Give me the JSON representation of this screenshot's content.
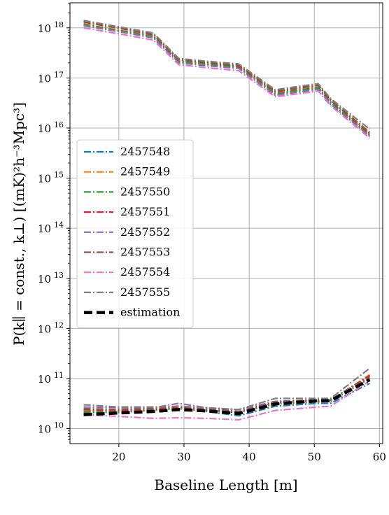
{
  "chart_data": {
    "type": "line",
    "xlabel": "Baseline Length [m]",
    "ylabel": "P(k∥ = const., k⊥) [(mK)²h⁻³Mpc³]",
    "xlim": [
      12.5,
      60.5
    ],
    "ylim_log10": [
      9.7,
      18.5
    ],
    "yscale": "log",
    "x_ticks": [
      20,
      30,
      40,
      50,
      60
    ],
    "y_tick_labels": [
      "10",
      "10",
      "10",
      "10",
      "10",
      "10",
      "10",
      "10",
      "10"
    ],
    "y_tick_exponents": [
      "10",
      "11",
      "12",
      "13",
      "14",
      "15",
      "16",
      "17",
      "18"
    ],
    "grid": true,
    "legend_position": "center-left",
    "x": [
      14.6,
      20,
      25.3,
      29.2,
      33.5,
      38.4,
      44,
      50.6,
      52.5,
      58.5
    ],
    "series": [
      {
        "name": "2457548",
        "color": "#1f77b4",
        "upper": [
          1.15e+18,
          8.8e+17,
          6.6e+17,
          2.1e+17,
          1.85e+17,
          1.62e+17,
          4.8e+16,
          6.3e+16,
          3.2e+16,
          7000000000000000.0
        ],
        "lower": [
          21000000000.0,
          21000000000.0,
          23000000000.0,
          25000000000.0,
          22000000000.0,
          18000000000.0,
          28000000000.0,
          32000000000.0,
          32000000000.0,
          80000000000.0
        ]
      },
      {
        "name": "2457549",
        "color": "#ff7f0e",
        "upper": [
          1.2e+18,
          9e+17,
          6.9e+17,
          2.2e+17,
          1.9e+17,
          1.68e+17,
          5e+16,
          6.6e+16,
          3.4e+16,
          7500000000000000.0
        ],
        "lower": [
          23000000000.0,
          23000000000.0,
          24000000000.0,
          26000000000.0,
          23000000000.0,
          21000000000.0,
          32000000000.0,
          35000000000.0,
          36000000000.0,
          120000000000.0
        ]
      },
      {
        "name": "2457550",
        "color": "#2ca02c",
        "upper": [
          1.18e+18,
          8.9e+17,
          6.8e+17,
          2.15e+17,
          1.88e+17,
          1.65e+17,
          4.9e+16,
          6.5e+16,
          3.3e+16,
          7200000000000000.0
        ],
        "lower": [
          22000000000.0,
          22000000000.0,
          23000000000.0,
          26000000000.0,
          23000000000.0,
          21000000000.0,
          31000000000.0,
          34000000000.0,
          35000000000.0,
          100000000000.0
        ]
      },
      {
        "name": "2457551",
        "color": "#d62728",
        "upper": [
          1.3e+18,
          9.8e+17,
          7.3e+17,
          2.3e+17,
          2e+17,
          1.75e+17,
          5.3e+16,
          7.1e+16,
          3.6e+16,
          7700000000000000.0
        ],
        "lower": [
          24000000000.0,
          23000000000.0,
          24000000000.0,
          27000000000.0,
          24000000000.0,
          21000000000.0,
          33000000000.0,
          36000000000.0,
          37000000000.0,
          115000000000.0
        ]
      },
      {
        "name": "2457552",
        "color": "#9467bd",
        "upper": [
          1.1e+18,
          8.4e+17,
          6.3e+17,
          2e+17,
          1.75e+17,
          1.55e+17,
          4.5e+16,
          5.9e+16,
          3e+16,
          6800000000000000.0
        ],
        "lower": [
          27000000000.0,
          26000000000.0,
          26000000000.0,
          32000000000.0,
          26000000000.0,
          24000000000.0,
          35000000000.0,
          38000000000.0,
          38000000000.0,
          105000000000.0
        ]
      },
      {
        "name": "2457553",
        "color": "#8c564b",
        "upper": [
          1.35e+18,
          1e+18,
          7.5e+17,
          2.35e+17,
          2.05e+17,
          1.8e+17,
          5.5e+16,
          7.3e+16,
          3.7e+16,
          8200000000000000.0
        ],
        "lower": [
          25000000000.0,
          24000000000.0,
          25000000000.0,
          28000000000.0,
          25000000000.0,
          22000000000.0,
          34000000000.0,
          37000000000.0,
          38000000000.0,
          110000000000.0
        ]
      },
      {
        "name": "2457554",
        "color": "#e377c2",
        "upper": [
          1e+18,
          7.6e+17,
          5.7e+17,
          1.85e+17,
          1.6e+17,
          1.4e+17,
          4.2e+16,
          5.5e+16,
          2.8e+16,
          6300000000000000.0
        ],
        "lower": [
          19000000000.0,
          17500000000.0,
          16000000000.0,
          16500000000.0,
          16000000000.0,
          15000000000.0,
          23000000000.0,
          27000000000.0,
          28000000000.0,
          90000000000.0
        ]
      },
      {
        "name": "2457555",
        "color": "#7f7f7f",
        "upper": [
          1.4e+18,
          1.05e+18,
          7.9e+17,
          2.45e+17,
          2.15e+17,
          1.9e+17,
          5.8e+16,
          7.7e+16,
          3.9e+16,
          9500000000000000.0
        ],
        "lower": [
          30000000000.0,
          27000000000.0,
          27000000000.0,
          28000000000.0,
          26000000000.0,
          24000000000.0,
          40000000000.0,
          40000000000.0,
          40000000000.0,
          160000000000.0
        ]
      },
      {
        "name": "estimation",
        "color": "#000000",
        "lower": [
          19000000000.0,
          20500000000.0,
          22000000000.0,
          24000000000.0,
          22500000000.0,
          20000000000.0,
          31000000000.0,
          36000000000.0,
          36000000000.0,
          95000000000.0
        ]
      }
    ]
  }
}
